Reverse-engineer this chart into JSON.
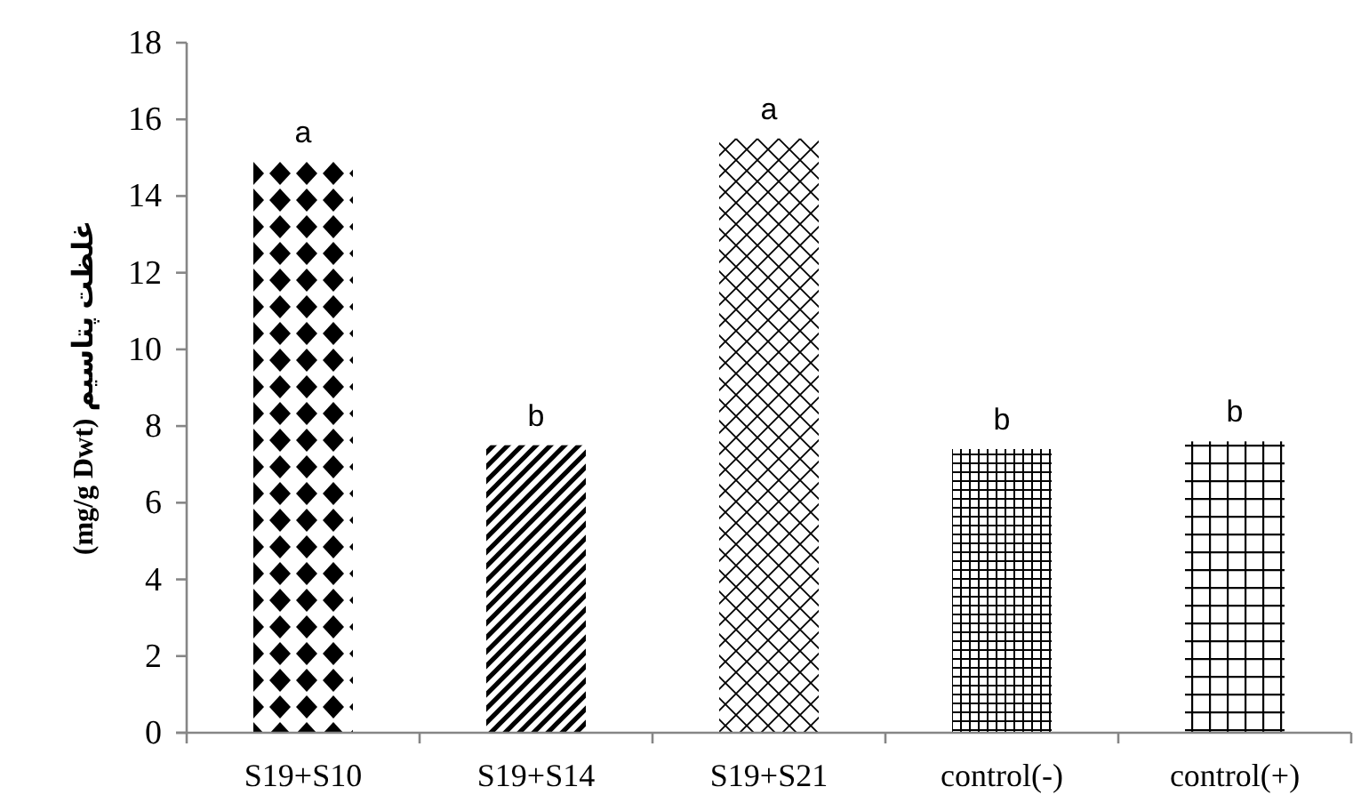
{
  "chart_data": {
    "type": "bar",
    "ylabel": "غلظت پتاسیم (mg/g Dwt)",
    "categories": [
      "S19+S10",
      "S19+S14",
      "S19+S21",
      "control(-)",
      "control(+)"
    ],
    "values": [
      14.9,
      7.5,
      15.5,
      7.4,
      7.6
    ],
    "color": "#000000",
    "ylim": [
      0,
      18
    ],
    "yticks": [
      0,
      2,
      4,
      6,
      8,
      10,
      12,
      14,
      16,
      18
    ],
    "grid": false,
    "annotations": [
      {
        "text": "a",
        "x": "S19+S10",
        "y": 14.9
      },
      {
        "text": "b",
        "x": "S19+S14",
        "y": 7.5
      },
      {
        "text": "a",
        "x": "S19+S21",
        "y": 15.5
      },
      {
        "text": "b",
        "x": "control(-)",
        "y": 7.4
      },
      {
        "text": "b",
        "x": "control(+)",
        "y": 7.6
      }
    ]
  }
}
